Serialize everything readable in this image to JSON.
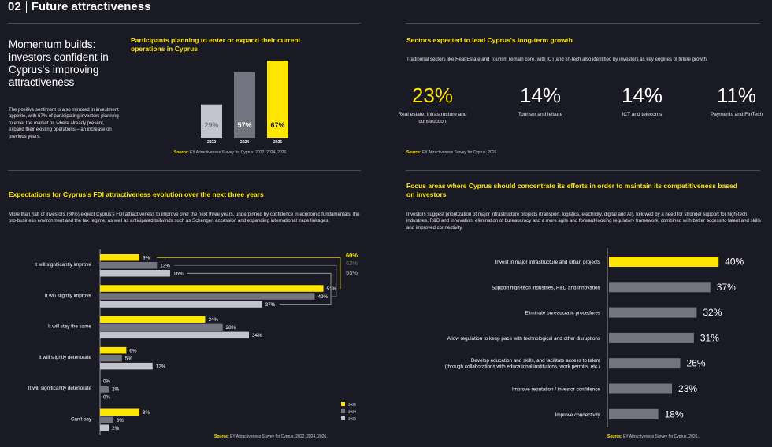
{
  "page": {
    "number": "02",
    "title": "Future attractiveness"
  },
  "momentum": {
    "title": "Momentum builds: investors confident in Cyprus's improving attractiveness",
    "body": "The positive sentiment is also mirrored in investment appetite, with 67% of participating investors planning to enter the market or, where already present, expand their existing operations – an increase on previous years."
  },
  "participants": {
    "heading": "Participants planning to enter or expand their current operations in Cyprus",
    "source_label": "Source:",
    "source_text": "EY Attractiveness Survey for Cyprus, 2022, 2024, 2026."
  },
  "sectors": {
    "heading": "Sectors expected to lead Cyprus's long-term growth",
    "text": "Traditional sectors like Real Estate and Tourism remain core, with ICT and fin-tech also identified by investors as key engines of future growth.",
    "items": [
      {
        "value": "23%",
        "label": "Real estate, infrastructure and construction"
      },
      {
        "value": "14%",
        "label": "Tourism and leisure"
      },
      {
        "value": "14%",
        "label": "ICT and telecoms"
      },
      {
        "value": "11%",
        "label": "Payments and FinTech"
      }
    ],
    "source_label": "Source:",
    "source_text": "EY Attractiveness Survey for Cyprus, 2026."
  },
  "expectations": {
    "heading": "Expectations for Cyprus's FDI attractiveness evolution over the next three years",
    "text": "More than half of investors (60%) expect Cyprus's FDI attractiveness to improve over the next three years, underpinned by confidence in economic fundamentals, the pro-business environment and the tax regime, as well as anticipated tailwinds such as Schengen accession and expanding international trade linkages.",
    "source_label": "Source:",
    "source_text": "EY Attractiveness Survey for Cyprus, 2022, 2024, 2026."
  },
  "focus": {
    "heading": "Focus areas where Cyprus should concentrate its efforts in order to maintain its competitiveness based on investors",
    "text": "Investors suggest prioritization of major infrastructure projects (transport, logistics, electricity, digital and AI), followed by a need for stronger support for high-tech industries, R&D and innovation, elimination of bureaucracy and a more agile and forward-looking regulatory framework, combined with better access to talent and skills and improved connectivity.",
    "source_label": "Source:",
    "source_text": "EY Attractiveness Survey for Cyprus, 2026.."
  },
  "colors": {
    "yellow": "#ffe600",
    "grey_2024": "#747480",
    "grey_2022": "#c4c4cd",
    "background": "#1a1a24",
    "focus_bar": "#747480"
  },
  "chart_data": [
    {
      "id": "participants",
      "type": "bar",
      "categories": [
        "2022",
        "2024",
        "2026"
      ],
      "values": [
        29,
        57,
        67
      ],
      "value_labels": [
        "29%",
        "57%",
        "67%"
      ],
      "colors": [
        "#c4c4cd",
        "#747480",
        "#ffe600"
      ]
    },
    {
      "id": "expectations",
      "type": "bar",
      "orientation": "horizontal",
      "categories": [
        "It will significantly improve",
        "It will slightly improve",
        "It will stay the same",
        "It will slightly deteriorate",
        "It will significantly deteriorate",
        "Can't say"
      ],
      "series": [
        {
          "name": "2026",
          "values": [
            9,
            51,
            24,
            6,
            0,
            9
          ],
          "color": "#ffe600"
        },
        {
          "name": "2024",
          "values": [
            13,
            49,
            28,
            5,
            2,
            3
          ],
          "color": "#747480"
        },
        {
          "name": "2022",
          "values": [
            16,
            37,
            34,
            12,
            0,
            2
          ],
          "color": "#c4c4cd"
        }
      ],
      "totals": [
        {
          "label": "60%",
          "color": "#ffe600"
        },
        {
          "label": "62%",
          "color": "#747480"
        },
        {
          "label": "53%",
          "color": "#c4c4cd"
        }
      ],
      "legend": "bottom-right"
    },
    {
      "id": "focus",
      "type": "bar",
      "orientation": "horizontal",
      "categories": [
        "Invest in major infrastructure and urban projects",
        "Support high-tech industries, R&D and innovation",
        "Eliminate bureaucratic procedures",
        "Allow regulation to keep pace with technological and other disruptions",
        "Develop education and skills, and facilitate access to talent|(through collaborations with educational institutions, work permits, etc.)",
        "Improve reputation / investor confidence",
        "Improve connectivity"
      ],
      "values": [
        40,
        37,
        32,
        31,
        26,
        23,
        18
      ],
      "value_labels": [
        "40%",
        "37%",
        "32%",
        "31%",
        "26%",
        "23%",
        "18%"
      ]
    }
  ]
}
